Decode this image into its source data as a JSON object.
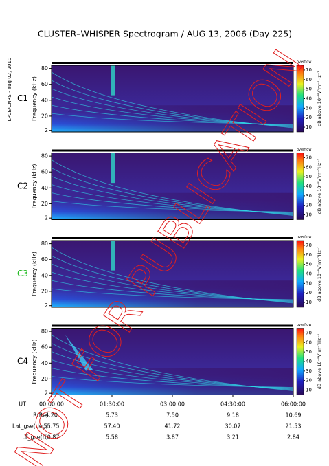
{
  "title": "CLUSTER–WHISPER Spectrogram / AUG 13, 2006 (Day 225)",
  "credit": "LPCE/CNRS - aug 02, 2010",
  "watermark": "NOT FOR PUBLICATION",
  "panels": [
    {
      "label": "C1",
      "color": "#000000"
    },
    {
      "label": "C2",
      "color": "#000000"
    },
    {
      "label": "C3",
      "color": "#22bb22"
    },
    {
      "label": "C4",
      "color": "#000000"
    }
  ],
  "frequency_axis": {
    "label": "Frequency (kHz)",
    "ylim": [
      0,
      84
    ],
    "yticks": [
      2,
      20,
      40,
      60,
      80
    ]
  },
  "colorbar": {
    "label": "dB above 10⁻⁸V²m⁻²Hz⁻¹",
    "overflow_label": "overflow",
    "lim": [
      5,
      75
    ],
    "ticks": [
      10,
      20,
      30,
      40,
      50,
      60,
      70
    ]
  },
  "time_axis": {
    "label": "UT",
    "ticks": [
      "00:00:00",
      "01:30:00",
      "03:00:00",
      "04:30:00",
      "06:00:00"
    ]
  },
  "ephemeris": [
    {
      "label": "R(Re)",
      "values": [
        "4.20",
        "5.73",
        "7.50",
        "9.18",
        "10.69"
      ]
    },
    {
      "label": "Lat_gse(deg)",
      "values": [
        "55.75",
        "57.40",
        "41.72",
        "30.07",
        "21.53"
      ]
    },
    {
      "label": "LT_gse(h)",
      "values": [
        "10.87",
        "5.58",
        "3.87",
        "3.21",
        "2.84"
      ]
    }
  ]
}
